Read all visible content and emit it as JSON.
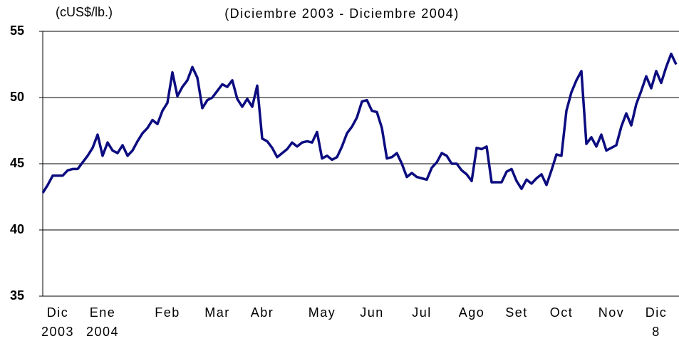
{
  "chart_data": {
    "type": "line",
    "unit_label": "(cUS$/lb.)",
    "title": "(Diciembre 2003 - Diciembre 2004)",
    "categories": [
      null,
      null,
      null,
      [
        "Dic",
        "2003"
      ],
      null,
      null,
      null,
      null,
      null,
      null,
      null,
      null,
      [
        "Ene",
        "2004"
      ],
      null,
      null,
      null,
      null,
      null,
      null,
      null,
      null,
      null,
      null,
      null,
      null,
      [
        "Feb"
      ],
      null,
      null,
      null,
      null,
      null,
      null,
      null,
      null,
      null,
      [
        "Mar"
      ],
      null,
      null,
      null,
      null,
      null,
      null,
      null,
      null,
      [
        "Abr"
      ],
      null,
      null,
      null,
      null,
      null,
      null,
      null,
      null,
      null,
      null,
      null,
      [
        "May"
      ],
      null,
      null,
      null,
      null,
      null,
      null,
      null,
      null,
      null,
      [
        "Jun"
      ],
      null,
      null,
      null,
      null,
      null,
      null,
      null,
      null,
      null,
      [
        "Jul"
      ],
      null,
      null,
      null,
      null,
      null,
      null,
      null,
      null,
      null,
      [
        "Ago"
      ],
      null,
      null,
      null,
      null,
      null,
      null,
      null,
      null,
      [
        "Set"
      ],
      null,
      null,
      null,
      null,
      null,
      null,
      null,
      null,
      [
        "Oct"
      ],
      null,
      null,
      null,
      null,
      null,
      null,
      null,
      null,
      null,
      [
        "Nov"
      ],
      null,
      null,
      null,
      null,
      null,
      null,
      null,
      null,
      [
        "Dic",
        "8"
      ],
      null,
      null,
      null,
      null
    ],
    "series": [
      {
        "color": "#0c0c80",
        "values": [
          42.8,
          43.4,
          44.1,
          44.1,
          44.1,
          44.5,
          44.6,
          44.6,
          45.1,
          45.6,
          46.2,
          47.2,
          45.6,
          46.6,
          46.0,
          45.8,
          46.4,
          45.6,
          46.0,
          46.7,
          47.3,
          47.7,
          48.3,
          48.0,
          49.0,
          49.6,
          51.9,
          50.1,
          50.8,
          51.3,
          52.3,
          51.5,
          49.2,
          49.8,
          50.0,
          50.5,
          51.0,
          50.8,
          51.3,
          49.9,
          49.3,
          49.9,
          49.3,
          50.9,
          46.9,
          46.7,
          46.2,
          45.5,
          45.8,
          46.1,
          46.6,
          46.3,
          46.6,
          46.7,
          46.6,
          47.4,
          45.4,
          45.6,
          45.3,
          45.5,
          46.3,
          47.3,
          47.8,
          48.5,
          49.7,
          49.8,
          49.0,
          48.9,
          47.7,
          45.4,
          45.5,
          45.8,
          45.0,
          44.0,
          44.3,
          44.0,
          43.9,
          43.8,
          44.7,
          45.1,
          45.8,
          45.6,
          45.0,
          45.0,
          44.5,
          44.2,
          43.7,
          46.2,
          46.1,
          46.3,
          43.6,
          43.6,
          43.6,
          44.4,
          44.6,
          43.7,
          43.1,
          43.8,
          43.5,
          43.9,
          44.2,
          43.4,
          44.5,
          45.7,
          45.6,
          49.0,
          50.4,
          51.3,
          52.0,
          46.5,
          47.0,
          46.3,
          47.2,
          46.0,
          46.2,
          46.4,
          47.8,
          48.8,
          47.9,
          49.5,
          50.5,
          51.6,
          50.7,
          52.0,
          51.1,
          52.3,
          53.3,
          52.5
        ]
      }
    ],
    "ylim": [
      35,
      55
    ],
    "yticks": [
      35,
      40,
      45,
      50,
      55
    ],
    "grid": true
  }
}
